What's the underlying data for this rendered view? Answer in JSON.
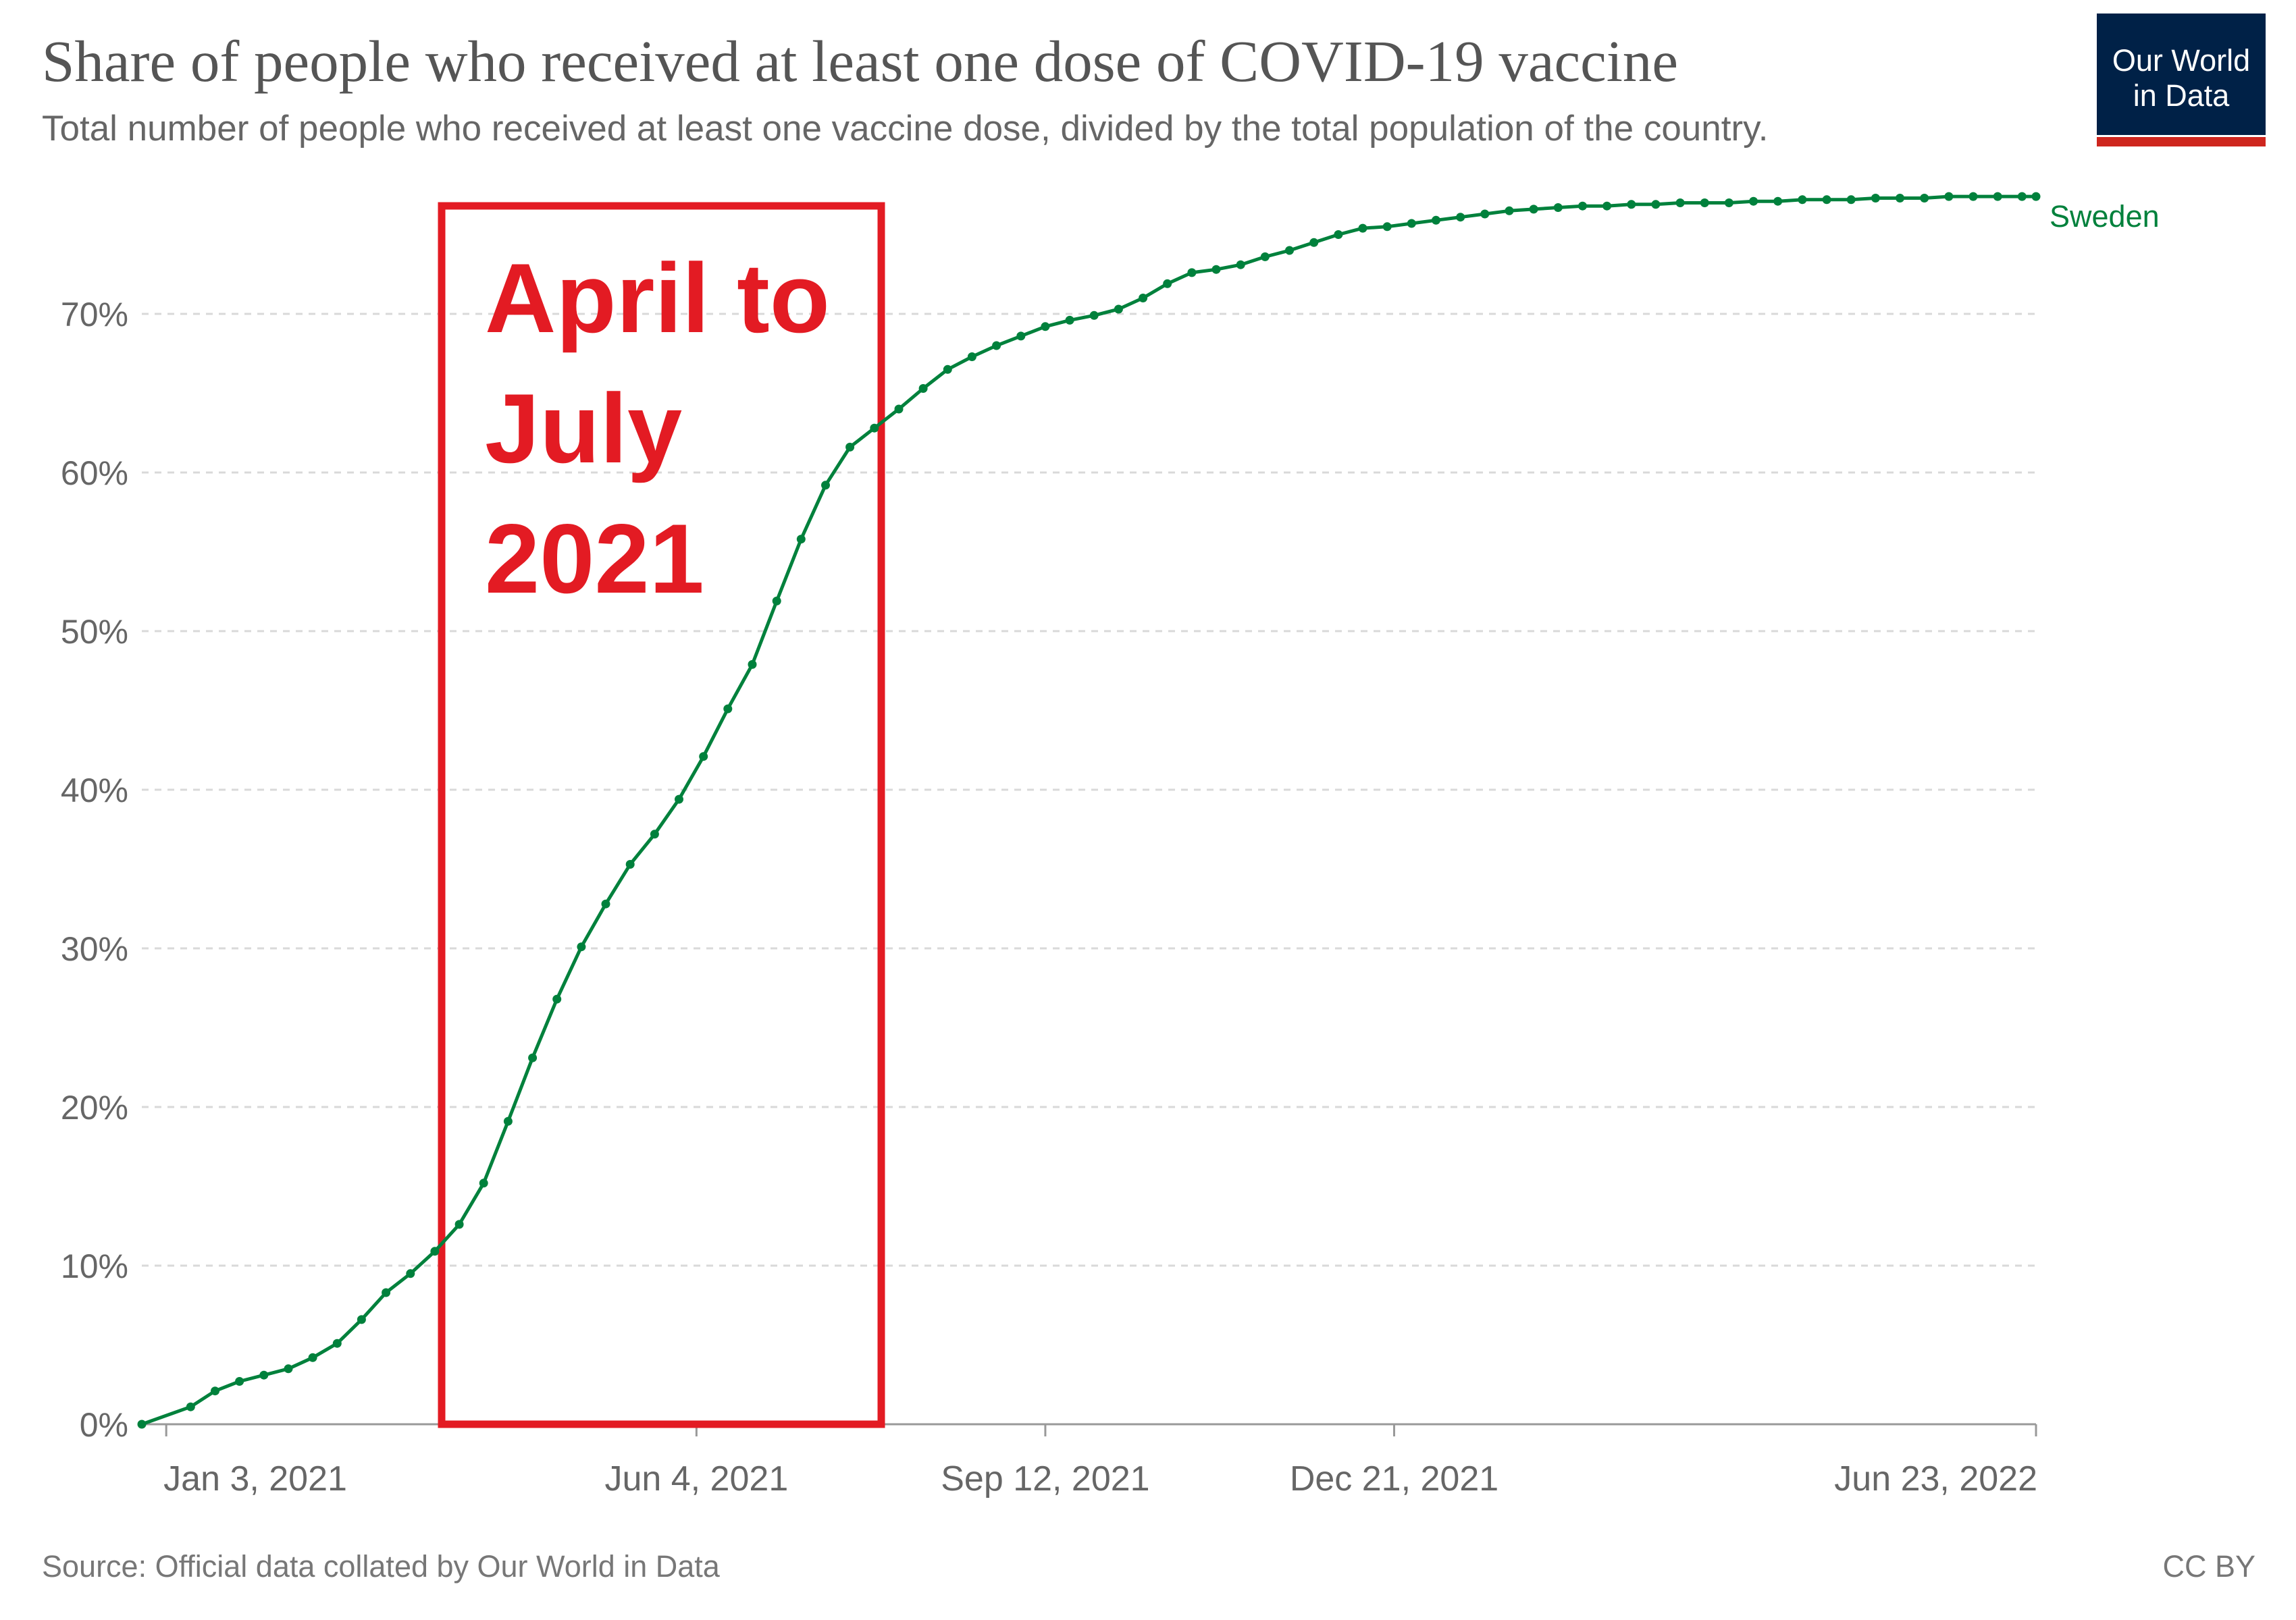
{
  "header": {
    "title": "Share of people who received at least one dose of COVID-19 vaccine",
    "subtitle": "Total number of people who received at least one vaccine dose, divided by the total population of the country."
  },
  "logo": {
    "text": "Our World\nin Data",
    "background": "#002147",
    "accent": "#ce261e"
  },
  "footer": {
    "source": "Source: Official data collated by Our World in Data",
    "license": "CC BY"
  },
  "annotation": {
    "lines": [
      "April to",
      "July",
      "2021"
    ],
    "color": "#e31b23",
    "x_range": [
      "2021-04-01",
      "2021-07-31"
    ]
  },
  "chart_data": {
    "type": "line",
    "title": "Share of people who received at least one dose of COVID-19 vaccine",
    "subtitle": "Total number of people who received at least one vaccine dose, divided by the total population of the country.",
    "xlabel": "",
    "ylabel": "",
    "x_ticks": [
      "Jan 3, 2021",
      "Jun 4, 2021",
      "Sep 12, 2021",
      "Dec 21, 2021",
      "Jun 23, 2022"
    ],
    "y_ticks": [
      "0%",
      "10%",
      "20%",
      "30%",
      "40%",
      "50%",
      "60%",
      "70%"
    ],
    "ylim": [
      0,
      77.5
    ],
    "xlim": [
      "2020-12-27",
      "2022-06-23"
    ],
    "grid": "horizontal dashed",
    "series": [
      {
        "name": "Sweden",
        "color": "#00813c",
        "x": [
          "2020-12-27",
          "2021-01-10",
          "2021-01-17",
          "2021-01-24",
          "2021-01-31",
          "2021-02-07",
          "2021-02-14",
          "2021-02-21",
          "2021-02-28",
          "2021-03-07",
          "2021-03-14",
          "2021-03-21",
          "2021-03-28",
          "2021-04-04",
          "2021-04-11",
          "2021-04-18",
          "2021-04-25",
          "2021-05-02",
          "2021-05-09",
          "2021-05-16",
          "2021-05-23",
          "2021-05-30",
          "2021-06-06",
          "2021-06-13",
          "2021-06-20",
          "2021-06-27",
          "2021-07-04",
          "2021-07-11",
          "2021-07-18",
          "2021-07-25",
          "2021-08-01",
          "2021-08-08",
          "2021-08-15",
          "2021-08-22",
          "2021-08-29",
          "2021-09-05",
          "2021-09-12",
          "2021-09-19",
          "2021-09-26",
          "2021-10-03",
          "2021-10-10",
          "2021-10-17",
          "2021-10-24",
          "2021-10-31",
          "2021-11-07",
          "2021-11-14",
          "2021-11-21",
          "2021-11-28",
          "2021-12-05",
          "2021-12-12",
          "2021-12-19",
          "2021-12-26",
          "2022-01-02",
          "2022-01-09",
          "2022-01-16",
          "2022-01-23",
          "2022-01-30",
          "2022-02-06",
          "2022-02-13",
          "2022-02-20",
          "2022-02-27",
          "2022-03-06",
          "2022-03-13",
          "2022-03-20",
          "2022-03-27",
          "2022-04-03",
          "2022-04-10",
          "2022-04-17",
          "2022-04-24",
          "2022-05-01",
          "2022-05-08",
          "2022-05-15",
          "2022-05-22",
          "2022-05-29",
          "2022-06-05",
          "2022-06-12",
          "2022-06-19",
          "2022-06-23"
        ],
        "y": [
          0,
          1.1,
          2.1,
          2.7,
          3.1,
          3.5,
          4.2,
          5.1,
          6.6,
          8.3,
          9.5,
          10.9,
          12.6,
          15.2,
          19.1,
          23.1,
          26.8,
          30.1,
          32.8,
          35.3,
          37.2,
          39.4,
          42.1,
          45.1,
          47.9,
          51.9,
          55.8,
          59.2,
          61.6,
          62.8,
          64.0,
          65.3,
          66.5,
          67.3,
          68.0,
          68.6,
          69.2,
          69.6,
          69.9,
          70.3,
          71.0,
          71.9,
          72.6,
          72.8,
          73.1,
          73.6,
          74.0,
          74.5,
          75.0,
          75.4,
          75.5,
          75.7,
          75.9,
          76.1,
          76.3,
          76.5,
          76.6,
          76.7,
          76.8,
          76.8,
          76.9,
          76.9,
          77.0,
          77.0,
          77.0,
          77.1,
          77.1,
          77.2,
          77.2,
          77.2,
          77.3,
          77.3,
          77.3,
          77.4,
          77.4,
          77.4,
          77.4,
          77.4
        ]
      }
    ]
  }
}
